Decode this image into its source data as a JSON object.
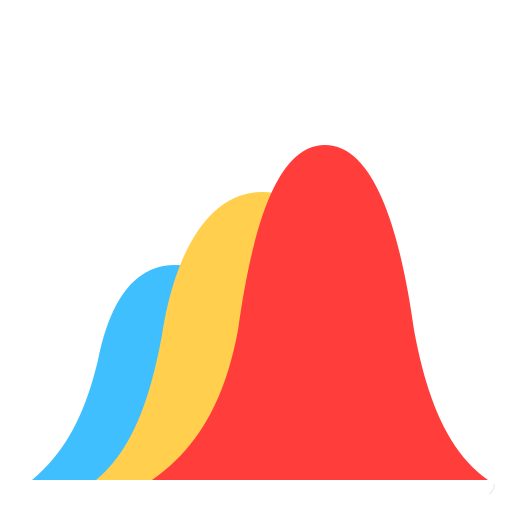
{
  "icon": {
    "name": "layered-bell-curves-icon",
    "background": "#ffffff",
    "layers": [
      {
        "name": "blue-curve",
        "color": "#40BFFF"
      },
      {
        "name": "yellow-curve",
        "color": "#FFCF4D"
      },
      {
        "name": "red-curve",
        "color": "#FF3D3A"
      }
    ]
  }
}
